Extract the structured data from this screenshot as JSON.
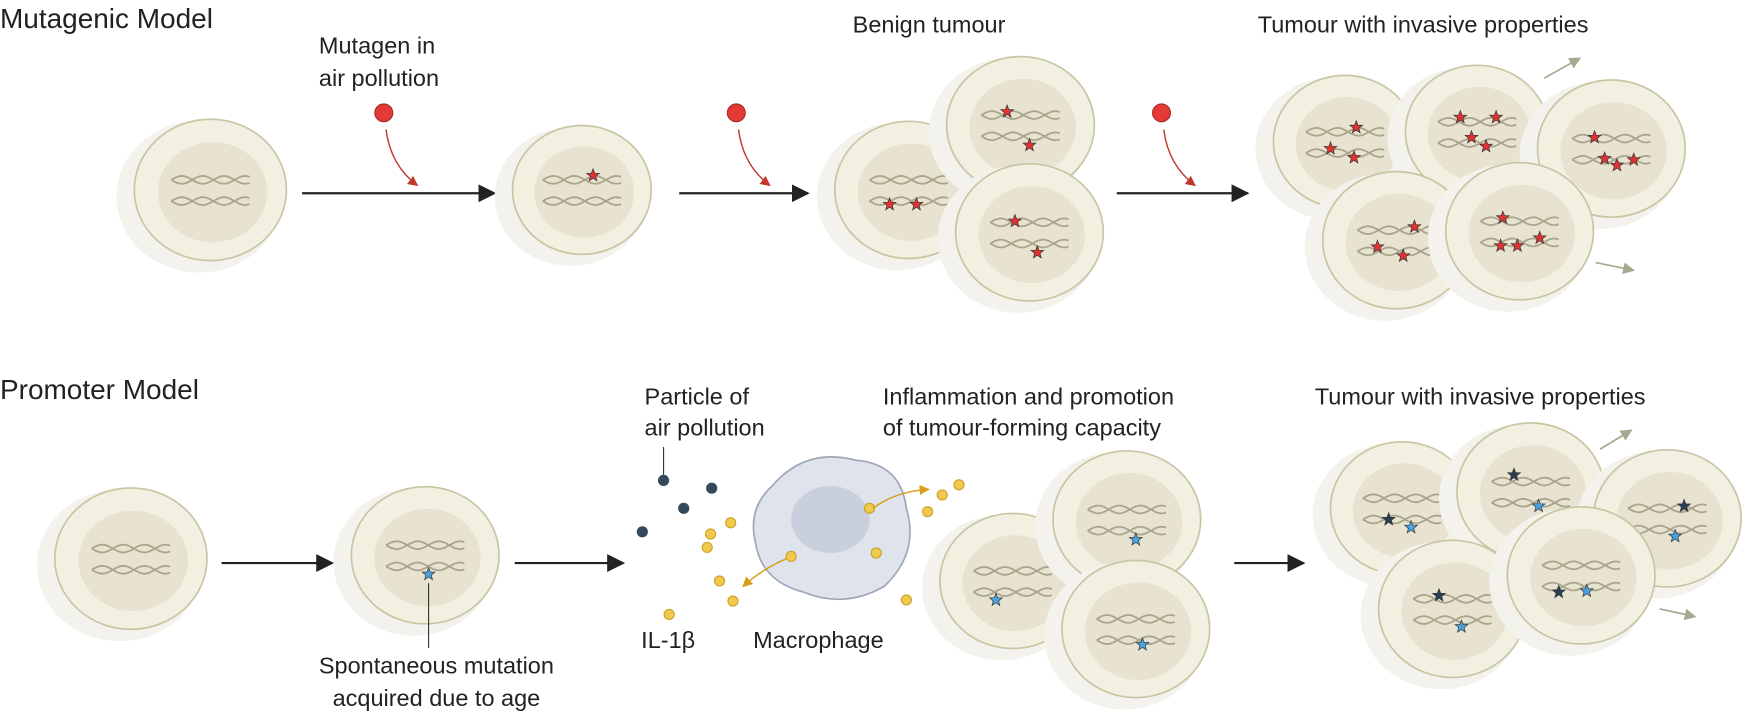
{
  "mutagenic": {
    "title": "Mutagenic Model",
    "mutagen": [
      "Mutagen in",
      "air pollution"
    ],
    "benign": "Benign tumour",
    "invasive": "Tumour with invasive properties"
  },
  "promoter": {
    "title": "Promoter Model",
    "particle": [
      "Particle of",
      "air pollution"
    ],
    "inflammation": [
      "Inflammation and promotion",
      "of tumour-forming capacity"
    ],
    "invasive": "Tumour with invasive properties",
    "il1b": "IL-1β",
    "macrophage": "Macrophage",
    "mutation": [
      "Spontaneous mutation",
      "acquired due to age"
    ]
  }
}
